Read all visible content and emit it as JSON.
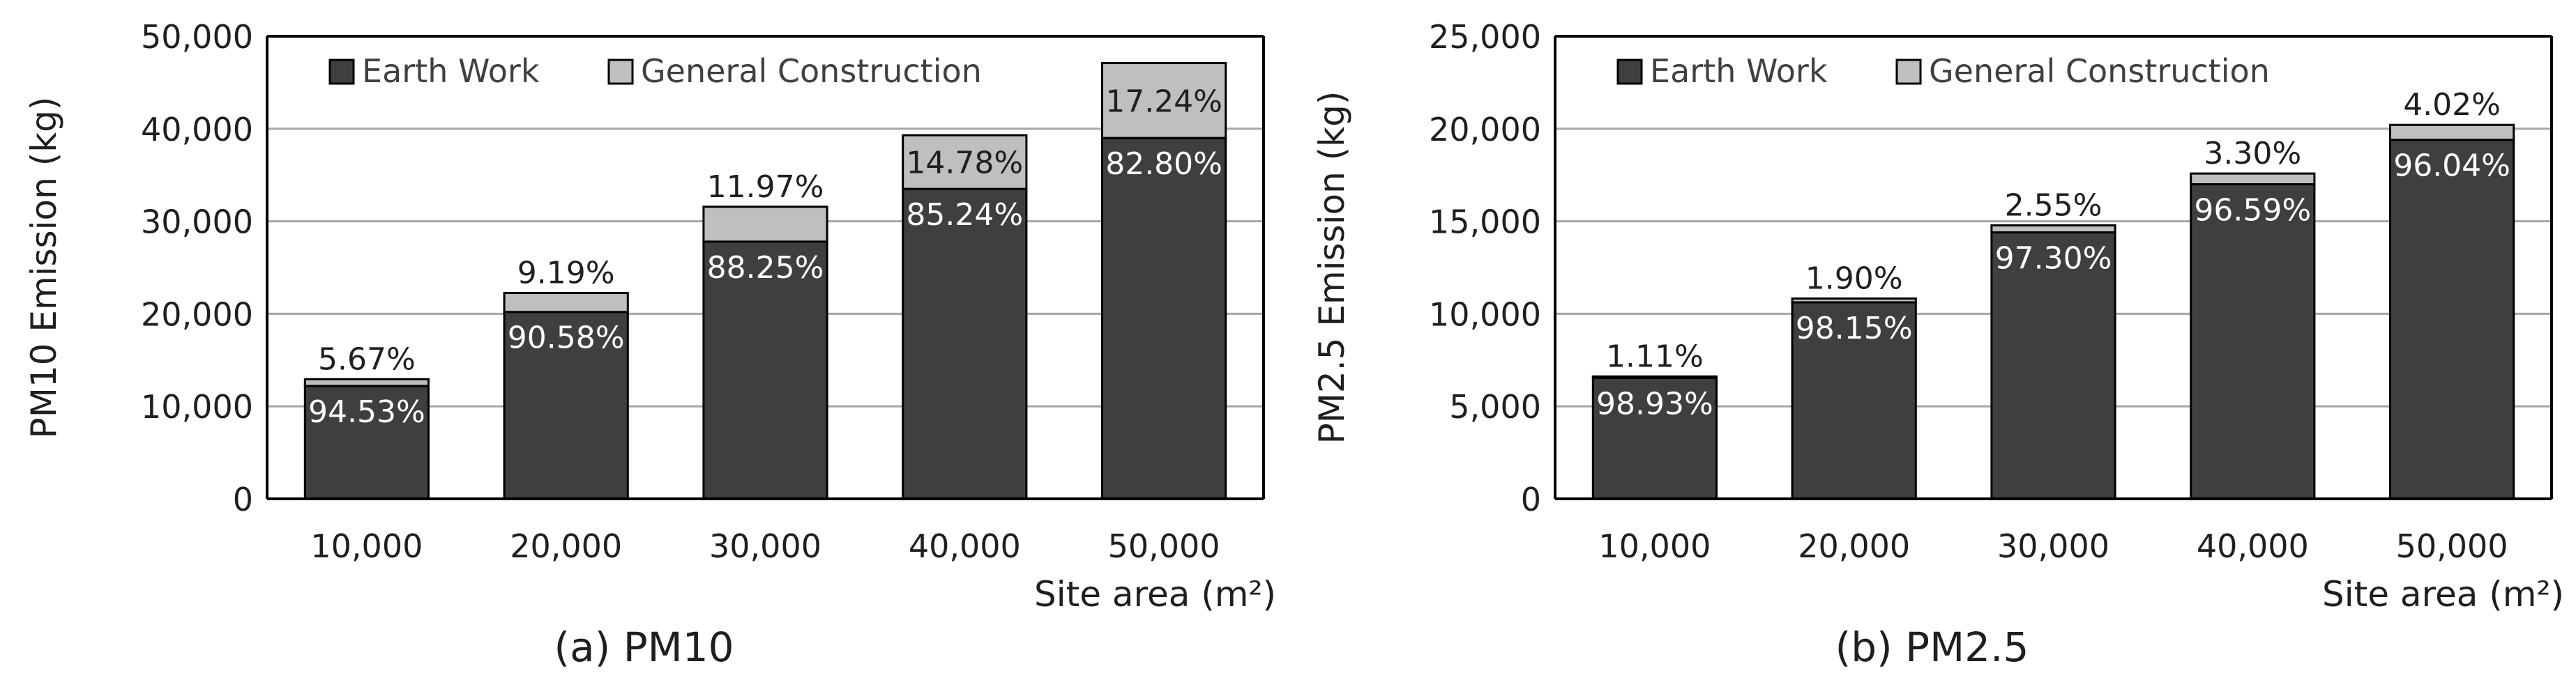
{
  "chart_data": [
    {
      "type": "bar",
      "stacked": true,
      "caption": "(a) PM10",
      "ylabel": "PM10 Emission (kg)",
      "xlabel": "Site area (m²)",
      "categories": [
        "10,000",
        "20,000",
        "30,000",
        "40,000",
        "50,000"
      ],
      "ylim": [
        0,
        50000
      ],
      "yticks": [
        "0",
        "10,000",
        "20,000",
        "30,000",
        "40,000",
        "50,000"
      ],
      "grid": true,
      "legend_position": "top-left",
      "series": [
        {
          "name": "Earth Work",
          "color": "#3f3f3f",
          "values": [
            12200,
            20200,
            27800,
            33500,
            39000
          ],
          "labels": [
            "94.53%",
            "90.58%",
            "88.25%",
            "85.24%",
            "82.80%"
          ]
        },
        {
          "name": "General Construction",
          "color": "#bfbfbf",
          "values": [
            730,
            2050,
            3770,
            5800,
            8100
          ],
          "labels": [
            "5.67%",
            "9.19%",
            "11.97%",
            "14.78%",
            "17.24%"
          ]
        }
      ]
    },
    {
      "type": "bar",
      "stacked": true,
      "caption": "(b) PM2.5",
      "ylabel": "PM2.5 Emission (kg)",
      "xlabel": "Site area (m²)",
      "categories": [
        "10,000",
        "20,000",
        "30,000",
        "40,000",
        "50,000"
      ],
      "ylim": [
        0,
        25000
      ],
      "yticks": [
        "0",
        "5,000",
        "10,000",
        "15,000",
        "20,000",
        "25,000"
      ],
      "grid": true,
      "legend_position": "top-left",
      "series": [
        {
          "name": "Earth Work",
          "color": "#3f3f3f",
          "values": [
            6540,
            10620,
            14400,
            17000,
            19400
          ],
          "labels": [
            "98.93%",
            "98.15%",
            "97.30%",
            "96.59%",
            "96.04%"
          ]
        },
        {
          "name": "General Construction",
          "color": "#bfbfbf",
          "values": [
            73,
            205,
            378,
            580,
            810
          ],
          "labels": [
            "1.11%",
            "1.90%",
            "2.55%",
            "3.30%",
            "4.02%"
          ]
        }
      ]
    }
  ]
}
